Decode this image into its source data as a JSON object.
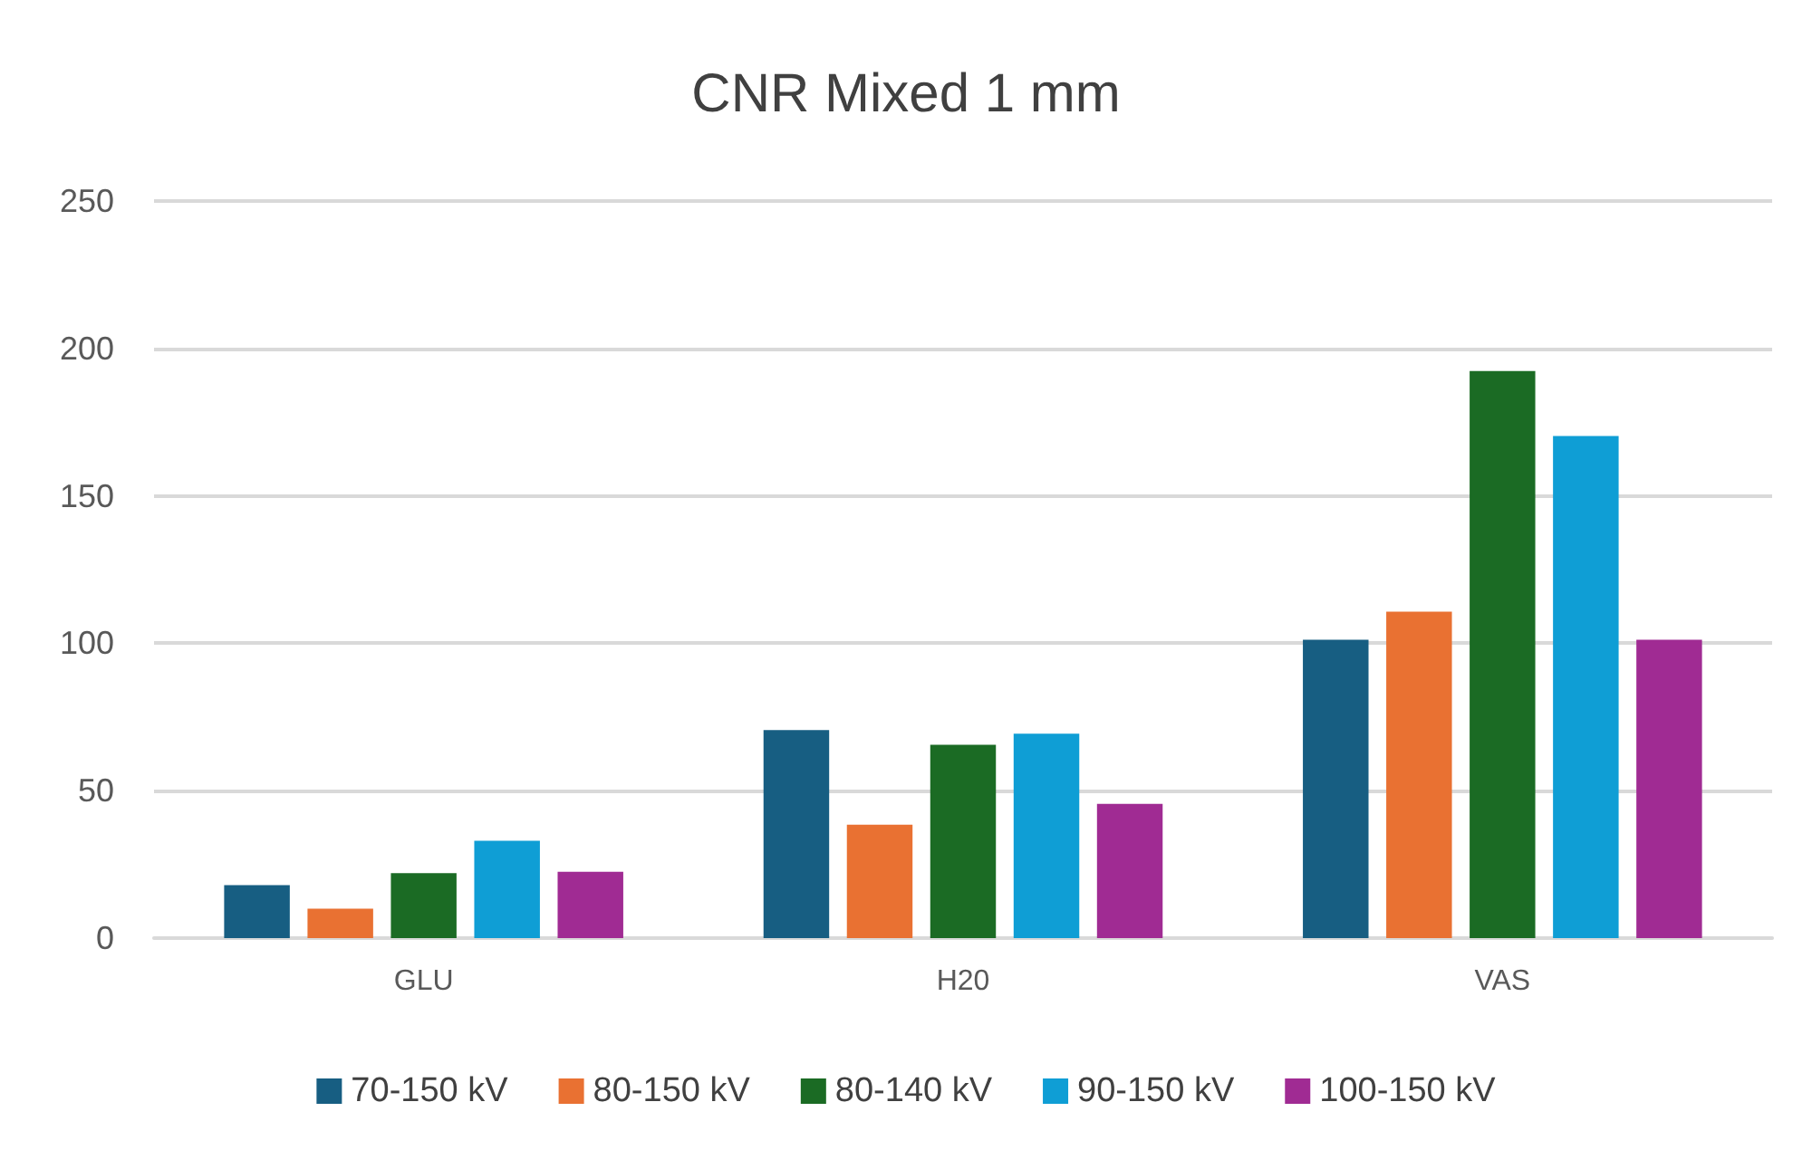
{
  "chart_data": {
    "type": "bar",
    "title": "CNR Mixed 1 mm",
    "categories": [
      "GLU",
      "H20",
      "VAS"
    ],
    "series": [
      {
        "name": "70-150 kV",
        "color": "#175e82",
        "values": [
          18,
          70.6,
          101.2
        ]
      },
      {
        "name": "80-150 kV",
        "color": "#e97132",
        "values": [
          10,
          38.5,
          110.7
        ]
      },
      {
        "name": "80-140 kV",
        "color": "#1b6b24",
        "values": [
          22,
          65.6,
          192.3
        ]
      },
      {
        "name": "90-150 kV",
        "color": "#0f9ed5",
        "values": [
          33,
          69.3,
          170.3
        ]
      },
      {
        "name": "100-150 kV",
        "color": "#a02b93",
        "values": [
          22.5,
          45.5,
          101.2
        ]
      }
    ],
    "ylim": [
      0,
      250
    ],
    "yticks": [
      0,
      50,
      100,
      150,
      200,
      250
    ],
    "grid": "y",
    "legend": "bottom"
  }
}
